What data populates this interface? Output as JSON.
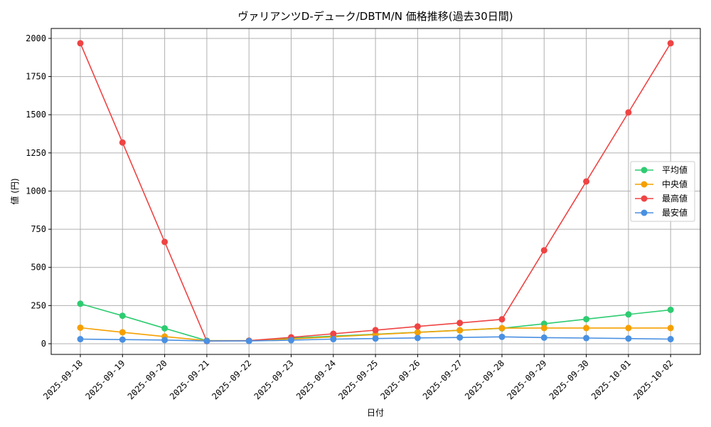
{
  "chart_data": {
    "type": "line",
    "title": "ヴァリアンツD-デューク/DBTM/N 価格推移(過去30日間)",
    "xlabel": "日付",
    "ylabel": "値 (円)",
    "ylim": [
      -70,
      2065
    ],
    "yticks": [
      0,
      250,
      500,
      750,
      1000,
      1250,
      1500,
      1750,
      2000
    ],
    "grid": true,
    "legend_position": "center-right",
    "categories": [
      "2025-09-18",
      "2025-09-19",
      "2025-09-20",
      "2025-09-21",
      "2025-09-22",
      "2025-09-23",
      "2025-09-24",
      "2025-09-25",
      "2025-09-26",
      "2025-09-27",
      "2025-09-28",
      "2025-09-29",
      "2025-09-30",
      "2025-10-01",
      "2025-10-02"
    ],
    "series": [
      {
        "name": "平均値",
        "color": "#2ecc71",
        "values": [
          262,
          183,
          101,
          20,
          20,
          37,
          50,
          62,
          75,
          88,
          101,
          131,
          161,
          192,
          222
        ]
      },
      {
        "name": "中央値",
        "color": "#f5a000",
        "values": [
          105,
          75,
          47,
          20,
          20,
          31,
          45,
          60,
          74,
          88,
          102,
          103,
          103,
          103,
          103
        ]
      },
      {
        "name": "最高値",
        "color": "#ef4444",
        "values": [
          1968,
          1318,
          667,
          17,
          20,
          42,
          65,
          89,
          113,
          136,
          160,
          612,
          1063,
          1515,
          1968
        ]
      },
      {
        "name": "最安値",
        "color": "#4a90e2",
        "values": [
          30,
          27,
          24,
          18,
          18,
          23,
          30,
          34,
          38,
          41,
          45,
          40,
          37,
          34,
          30
        ]
      }
    ]
  }
}
